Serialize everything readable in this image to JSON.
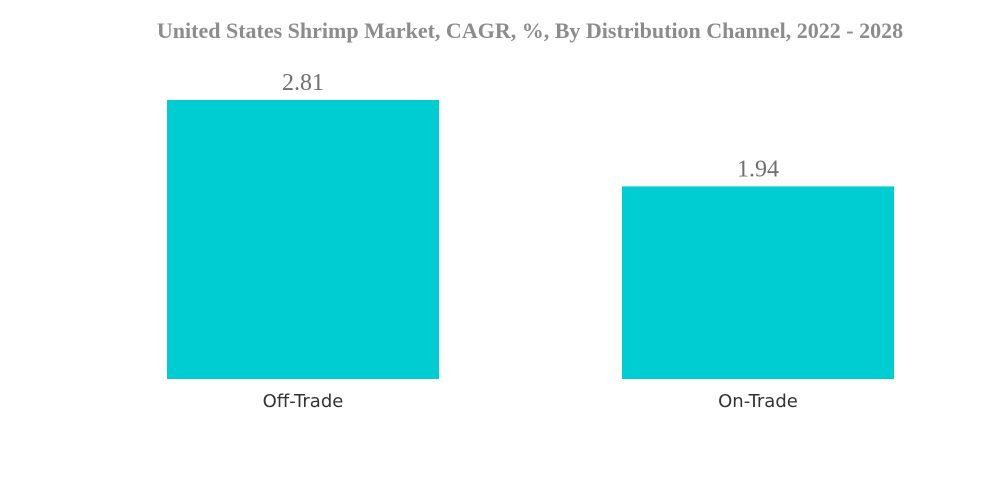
{
  "chart_data": {
    "type": "bar",
    "title": "United States Shrimp Market, CAGR, %, By Distribution Channel, 2022 - 2028",
    "categories": [
      "Off-Trade",
      "On-Trade"
    ],
    "values": [
      2.81,
      1.94
    ],
    "value_labels": [
      "2.81",
      "1.94"
    ],
    "xlabel": "",
    "ylabel": "",
    "ylim": [
      0,
      2.81
    ],
    "grid": false,
    "legend": "none",
    "colors": {
      "bar": "#00cdd1",
      "title": "#8c8c8c",
      "value_label": "#6f6f6f",
      "category_label": "#333333"
    }
  }
}
